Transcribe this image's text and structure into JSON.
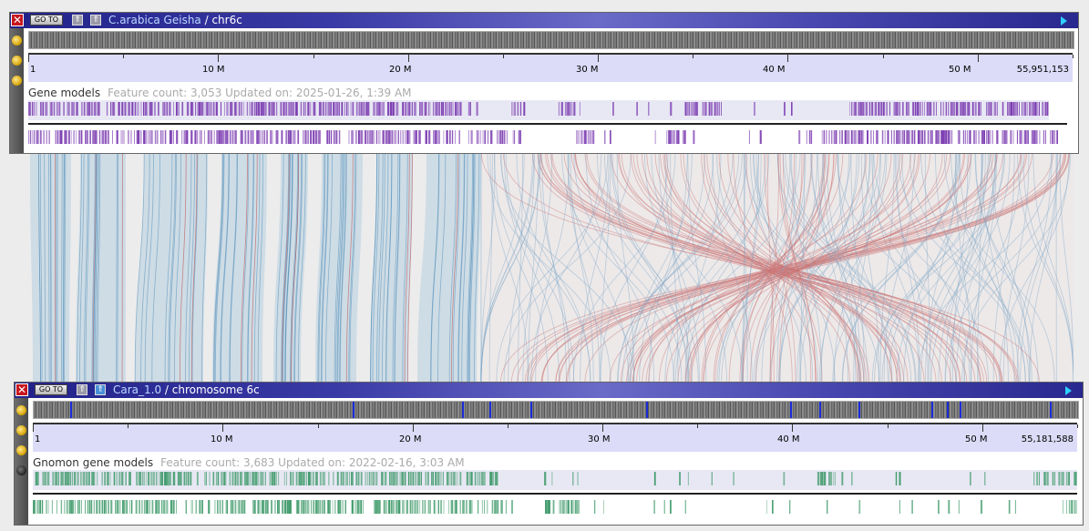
{
  "top_panel": {
    "close_label": "✕",
    "goto_label": "GO TO",
    "organism": "C.arabica Geisha",
    "separator": " / ",
    "chromosome": "chr6c",
    "ruler_start": "1",
    "ruler_end": "55,951,153",
    "ticks": [
      "10 M",
      "20 M",
      "30 M",
      "40 M",
      "50 M"
    ],
    "track_name": "Gene models",
    "track_meta": "Feature count: 3,053   Updated on: 2025-01-26, 1:39 AM",
    "feature_color": "#7a3ab0"
  },
  "bottom_panel": {
    "close_label": "✕",
    "goto_label": "GO TO",
    "organism": "Cara_1.0",
    "separator": " / ",
    "chromosome": "chromosome 6c",
    "ruler_start": "1",
    "ruler_end": "55,181,588",
    "ticks": [
      "10 M",
      "20 M",
      "30 M",
      "40 M",
      "50 M"
    ],
    "track_name": "Gnomon gene models",
    "track_meta": "Feature count: 3,683   Updated on: 2022-02-16, 3:03 AM",
    "feature_color": "#3f9a6a"
  },
  "synteny_colors": {
    "forward": "#4a8ab8",
    "reverse": "#b83a3a",
    "fill": "#c9d9e4"
  }
}
